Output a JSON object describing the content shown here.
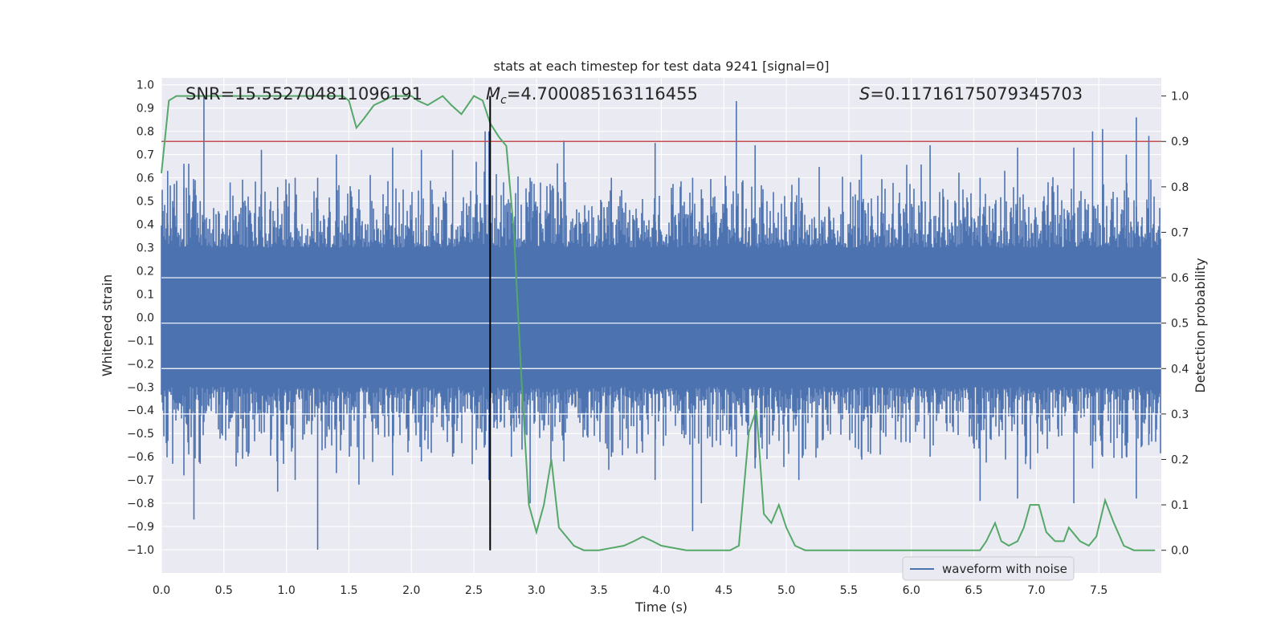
{
  "chart_data": {
    "type": "line",
    "title": "stats at each timestep for test data 9241 [signal=0]",
    "xlabel": "Time (s)",
    "ylabel_left": "Whitened strain",
    "ylabel_right": "Detection probability",
    "xlim": [
      0,
      8
    ],
    "ylim_left": [
      -1.1,
      1.03
    ],
    "ylim_right": [
      -0.05,
      1.04
    ],
    "x_ticks": [
      0.0,
      0.5,
      1.0,
      1.5,
      2.0,
      2.5,
      3.0,
      3.5,
      4.0,
      4.5,
      5.0,
      5.5,
      6.0,
      6.5,
      7.0,
      7.5
    ],
    "x_tick_labels": [
      "0.0",
      "0.5",
      "1.0",
      "1.5",
      "2.0",
      "2.5",
      "3.0",
      "3.5",
      "4.0",
      "4.5",
      "5.0",
      "5.5",
      "6.0",
      "6.5",
      "7.0",
      "7.5"
    ],
    "y_left_ticks": [
      1.0,
      0.9,
      0.8,
      0.7,
      0.6,
      0.5,
      0.4,
      0.3,
      0.2,
      0.1,
      0.0,
      -0.1,
      -0.2,
      -0.3,
      -0.4,
      -0.5,
      -0.6,
      -0.7,
      -0.8,
      -0.9,
      -1.0
    ],
    "y_left_tick_labels": [
      "1.0",
      "0.9",
      "0.8",
      "0.7",
      "0.6",
      "0.5",
      "0.4",
      "0.3",
      "0.2",
      "0.1",
      "0.0",
      "−0.1",
      "−0.2",
      "−0.3",
      "−0.4",
      "−0.5",
      "−0.6",
      "−0.7",
      "−0.8",
      "−0.9",
      "−1.0"
    ],
    "y_right_ticks": [
      1.0,
      0.9,
      0.8,
      0.7,
      0.6,
      0.5,
      0.4,
      0.3,
      0.2,
      0.1,
      0.0
    ],
    "y_right_tick_labels": [
      "1.0",
      "0.9",
      "0.8",
      "0.7",
      "0.6",
      "0.5",
      "0.4",
      "0.3",
      "0.2",
      "0.1",
      "0.0"
    ],
    "annotations": {
      "snr": "SNR=15.552704811096191",
      "mc_symbol": "M",
      "mc_subscript": "c",
      "mc_value": "=4.700085163116455",
      "s_symbol": "S",
      "s_value": "=0.11716175079345703"
    },
    "threshold_right": 0.9,
    "vertical_marker_x": 2.63,
    "series": [
      {
        "name": "waveform with noise",
        "axis": "left",
        "color": "#4c72b0",
        "style": "dense-noise",
        "typical_amplitude": 0.3,
        "spikes": [
          {
            "x": 0.05,
            "top": 0.63,
            "bottom": -0.3
          },
          {
            "x": 0.09,
            "top": 0.5,
            "bottom": -0.63
          },
          {
            "x": 0.18,
            "top": 0.66,
            "bottom": -0.68
          },
          {
            "x": 0.26,
            "top": 0.55,
            "bottom": -0.87
          },
          {
            "x": 0.31,
            "top": 0.5,
            "bottom": -0.63
          },
          {
            "x": 0.34,
            "top": 0.95,
            "bottom": -0.45
          },
          {
            "x": 0.55,
            "top": 0.58,
            "bottom": -0.45
          },
          {
            "x": 0.8,
            "top": 0.72,
            "bottom": -0.5
          },
          {
            "x": 0.93,
            "top": 0.56,
            "bottom": -0.75
          },
          {
            "x": 1.07,
            "top": 0.6,
            "bottom": -0.7
          },
          {
            "x": 1.25,
            "top": 0.6,
            "bottom": -1.0
          },
          {
            "x": 1.4,
            "top": 0.7,
            "bottom": -0.67
          },
          {
            "x": 1.58,
            "top": 0.55,
            "bottom": -0.72
          },
          {
            "x": 1.85,
            "top": 0.73,
            "bottom": -0.68
          },
          {
            "x": 2.08,
            "top": 0.72,
            "bottom": -0.62
          },
          {
            "x": 2.33,
            "top": 0.72,
            "bottom": -0.6
          },
          {
            "x": 2.59,
            "top": 0.8,
            "bottom": -0.55
          },
          {
            "x": 2.62,
            "top": 0.8,
            "bottom": -0.7
          },
          {
            "x": 2.8,
            "top": 0.45,
            "bottom": -0.6
          },
          {
            "x": 2.95,
            "top": 0.6,
            "bottom": -0.8
          },
          {
            "x": 3.22,
            "top": 0.76,
            "bottom": -0.62
          },
          {
            "x": 3.6,
            "top": 0.6,
            "bottom": -0.6
          },
          {
            "x": 3.95,
            "top": 0.75,
            "bottom": -0.7
          },
          {
            "x": 4.25,
            "top": 0.6,
            "bottom": -0.92
          },
          {
            "x": 4.32,
            "top": 0.55,
            "bottom": -0.8
          },
          {
            "x": 4.6,
            "top": 0.93,
            "bottom": -0.6
          },
          {
            "x": 4.75,
            "top": 0.74,
            "bottom": -0.65
          },
          {
            "x": 5.1,
            "top": 0.6,
            "bottom": -0.7
          },
          {
            "x": 5.6,
            "top": 0.7,
            "bottom": -0.6
          },
          {
            "x": 6.15,
            "top": 0.74,
            "bottom": -0.6
          },
          {
            "x": 6.55,
            "top": 0.6,
            "bottom": -0.79
          },
          {
            "x": 6.85,
            "top": 0.73,
            "bottom": -0.78
          },
          {
            "x": 7.3,
            "top": 0.73,
            "bottom": -0.8
          },
          {
            "x": 7.45,
            "top": 0.8,
            "bottom": -0.65
          },
          {
            "x": 7.53,
            "top": 0.81,
            "bottom": -0.6
          },
          {
            "x": 7.72,
            "top": 0.7,
            "bottom": -0.6
          },
          {
            "x": 7.8,
            "top": 0.86,
            "bottom": -0.78
          },
          {
            "x": 7.9,
            "top": 0.78,
            "bottom": -0.55
          }
        ]
      },
      {
        "name": "detection probability",
        "axis": "right",
        "color": "#55a868",
        "x": [
          0.0,
          0.06,
          0.12,
          0.2,
          0.5,
          1.0,
          1.3,
          1.45,
          1.5,
          1.56,
          1.62,
          1.7,
          1.78,
          1.85,
          1.9,
          2.0,
          2.05,
          2.13,
          2.25,
          2.32,
          2.4,
          2.5,
          2.57,
          2.63,
          2.7,
          2.76,
          2.82,
          2.88,
          2.94,
          3.0,
          3.06,
          3.12,
          3.18,
          3.3,
          3.38,
          3.5,
          3.7,
          3.78,
          3.85,
          3.93,
          4.0,
          4.2,
          4.35,
          4.45,
          4.55,
          4.62,
          4.7,
          4.76,
          4.82,
          4.88,
          4.94,
          5.0,
          5.07,
          5.15,
          5.5,
          6.0,
          6.55,
          6.6,
          6.67,
          6.72,
          6.78,
          6.85,
          6.9,
          6.95,
          7.02,
          7.08,
          7.15,
          7.22,
          7.26,
          7.35,
          7.42,
          7.48,
          7.55,
          7.62,
          7.7,
          7.78,
          7.95
        ],
        "values": [
          0.83,
          0.99,
          1.0,
          1.0,
          1.0,
          1.0,
          1.0,
          1.0,
          0.99,
          0.93,
          0.95,
          0.98,
          0.99,
          1.0,
          1.0,
          1.0,
          0.99,
          0.98,
          1.0,
          0.98,
          0.96,
          1.0,
          0.99,
          0.94,
          0.91,
          0.89,
          0.7,
          0.38,
          0.1,
          0.04,
          0.1,
          0.2,
          0.05,
          0.01,
          0.0,
          0.0,
          0.01,
          0.02,
          0.03,
          0.02,
          0.01,
          0.0,
          0.0,
          0.0,
          0.0,
          0.01,
          0.26,
          0.31,
          0.08,
          0.06,
          0.1,
          0.05,
          0.01,
          0.0,
          0.0,
          0.0,
          0.0,
          0.02,
          0.06,
          0.02,
          0.01,
          0.02,
          0.05,
          0.1,
          0.1,
          0.04,
          0.02,
          0.02,
          0.05,
          0.02,
          0.01,
          0.03,
          0.11,
          0.06,
          0.01,
          0.0,
          0.0
        ]
      }
    ],
    "legend": {
      "position": "lower-right",
      "entries": [
        {
          "label": "waveform with noise",
          "color": "#4c72b0"
        }
      ]
    }
  },
  "colors": {
    "background": "#ffffff",
    "plot_background": "#eaeaf2",
    "grid": "#ffffff",
    "waveform": "#4c72b0",
    "probability": "#55a868",
    "threshold": "#c44e52",
    "marker": "#000000"
  }
}
